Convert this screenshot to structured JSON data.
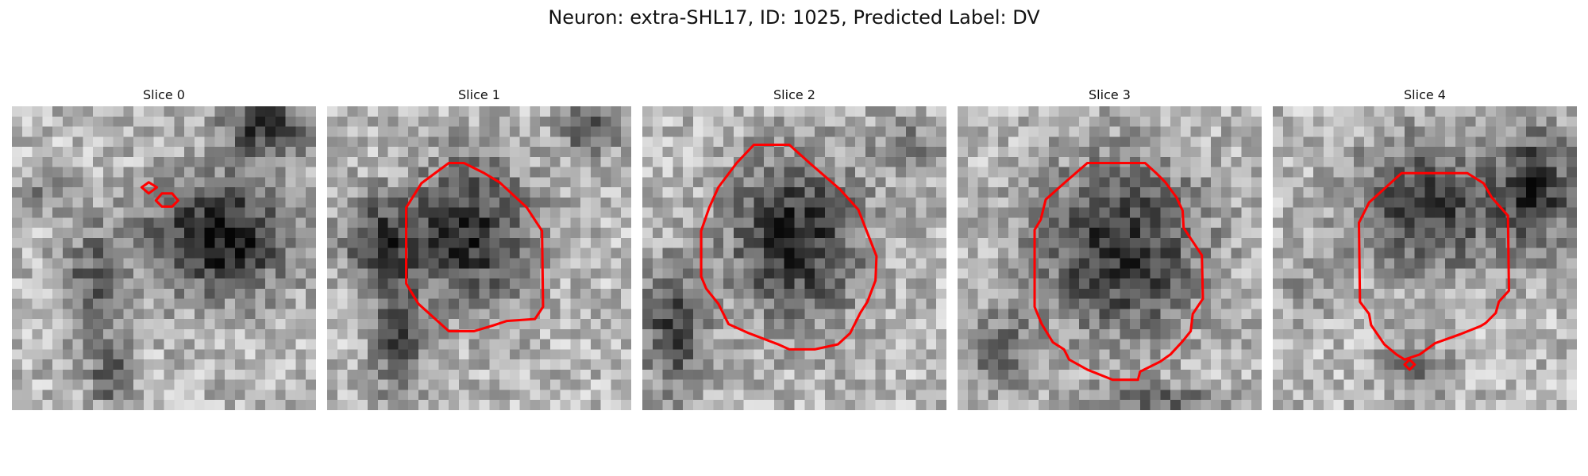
{
  "figure": {
    "title": "Neuron: extra-SHL17, ID: 1025, Predicted Label: DV"
  },
  "panels": [
    {
      "title": "Slice 0"
    },
    {
      "title": "Slice 1"
    },
    {
      "title": "Slice 2"
    },
    {
      "title": "Slice 3"
    },
    {
      "title": "Slice 4"
    }
  ],
  "colors": {
    "contour": "#ff0000"
  }
}
